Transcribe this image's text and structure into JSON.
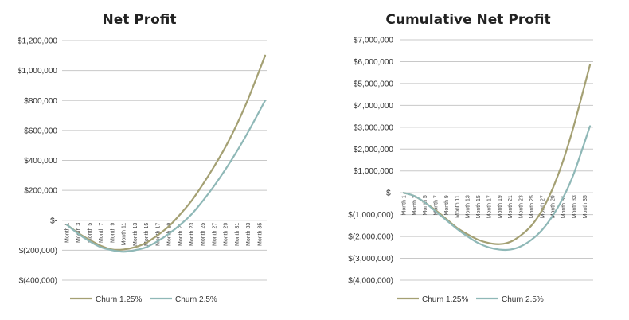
{
  "chart_data": [
    {
      "type": "line",
      "title": "Net Profit",
      "xlabel": "",
      "ylabel": "",
      "ylim": [
        -400000,
        1200000
      ],
      "yticks": [
        1200000,
        1000000,
        800000,
        600000,
        400000,
        200000,
        0,
        -200000,
        -400000
      ],
      "ytick_labels": [
        "$1,200,000",
        "$1,000,000",
        "$800,000",
        "$600,000",
        "$400,000",
        "$200,000",
        "$-",
        "$(200,000)",
        "$(400,000)"
      ],
      "x_labels": [
        "Month 1",
        "Month 3",
        "Month 5",
        "Month 7",
        "Month 9",
        "Month 11",
        "Month 13",
        "Month 15",
        "Month 17",
        "Month 19",
        "Month 21",
        "Month 23",
        "Month 25",
        "Month 27",
        "Month 29",
        "Month 31",
        "Month 33",
        "Month 35"
      ],
      "grid": true,
      "legend_position": "bottom",
      "series": [
        {
          "name": "Churn 1.25%",
          "color": "#a4a073",
          "x": [
            1,
            3,
            5,
            7,
            9,
            11,
            13,
            15,
            17,
            19,
            21,
            23,
            25,
            27,
            29,
            31,
            33,
            36
          ],
          "values": [
            -30000,
            -85000,
            -130000,
            -170000,
            -195000,
            -195000,
            -180000,
            -150000,
            -100000,
            -40000,
            40000,
            130000,
            240000,
            360000,
            490000,
            640000,
            810000,
            1100000
          ]
        },
        {
          "name": "Churn 2.5%",
          "color": "#8fb8b7",
          "x": [
            1,
            3,
            5,
            7,
            9,
            11,
            13,
            15,
            17,
            19,
            21,
            23,
            25,
            27,
            29,
            31,
            33,
            36
          ],
          "values": [
            -30000,
            -90000,
            -140000,
            -180000,
            -200000,
            -210000,
            -200000,
            -180000,
            -140000,
            -90000,
            -30000,
            40000,
            130000,
            230000,
            340000,
            460000,
            590000,
            800000
          ]
        }
      ]
    },
    {
      "type": "line",
      "title": "Cumulative Net Profit",
      "xlabel": "",
      "ylabel": "",
      "ylim": [
        -4000000,
        7000000
      ],
      "yticks": [
        7000000,
        6000000,
        5000000,
        4000000,
        3000000,
        2000000,
        1000000,
        0,
        -1000000,
        -2000000,
        -3000000,
        -4000000
      ],
      "ytick_labels": [
        "$7,000,000",
        "$6,000,000",
        "$5,000,000",
        "$4,000,000",
        "$3,000,000",
        "$2,000,000",
        "$1,000,000",
        "$-",
        "$(1,000,000)",
        "$(2,000,000)",
        "$(3,000,000)",
        "$(4,000,000)"
      ],
      "x_labels": [
        "Month 1",
        "Month 3",
        "Month 5",
        "Month 7",
        "Month 9",
        "Month 11",
        "Month 13",
        "Month 15",
        "Month 17",
        "Month 19",
        "Month 21",
        "Month 23",
        "Month 25",
        "Month 27",
        "Month 29",
        "Month 31",
        "Month 33",
        "Month 35"
      ],
      "grid": true,
      "legend_position": "bottom",
      "series": [
        {
          "name": "Churn 1.25%",
          "color": "#a4a073",
          "x": [
            1,
            3,
            5,
            7,
            9,
            11,
            13,
            15,
            17,
            19,
            21,
            23,
            25,
            27,
            29,
            31,
            33,
            36
          ],
          "values": [
            0,
            -150000,
            -450000,
            -800000,
            -1200000,
            -1600000,
            -1900000,
            -2150000,
            -2300000,
            -2350000,
            -2250000,
            -1950000,
            -1500000,
            -800000,
            200000,
            1500000,
            3100000,
            5850000
          ]
        },
        {
          "name": "Churn 2.5%",
          "color": "#8fb8b7",
          "x": [
            1,
            3,
            5,
            7,
            9,
            11,
            13,
            15,
            17,
            19,
            21,
            23,
            25,
            27,
            29,
            31,
            33,
            36
          ],
          "values": [
            0,
            -150000,
            -450000,
            -850000,
            -1250000,
            -1650000,
            -2000000,
            -2300000,
            -2500000,
            -2600000,
            -2600000,
            -2450000,
            -2150000,
            -1700000,
            -1050000,
            -200000,
            900000,
            3050000
          ]
        }
      ]
    }
  ]
}
